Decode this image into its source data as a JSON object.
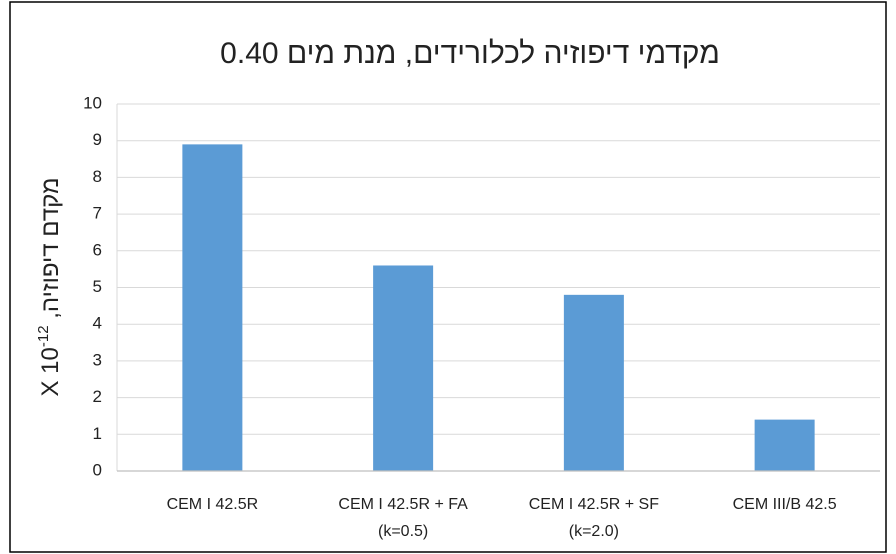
{
  "chart_data": {
    "type": "bar",
    "title": "מקדמי דיפוזיה לכלורידים, מנת מים 0.40",
    "ylabel": {
      "text": "מקדם דיפוזיה, X 10",
      "superscript": "-12"
    },
    "categories": [
      [
        "CEM I 42.5R"
      ],
      [
        "CEM I 42.5R + FA",
        "(k=0.5)"
      ],
      [
        "CEM I 42.5R + SF",
        "(k=2.0)"
      ],
      [
        "CEM III/B 42.5"
      ]
    ],
    "values": [
      8.9,
      5.6,
      4.8,
      1.4
    ],
    "color": "#5b9bd5",
    "ylim": [
      0,
      10
    ],
    "yticks": [
      0,
      1,
      2,
      3,
      4,
      5,
      6,
      7,
      8,
      9,
      10
    ],
    "grid": true
  }
}
